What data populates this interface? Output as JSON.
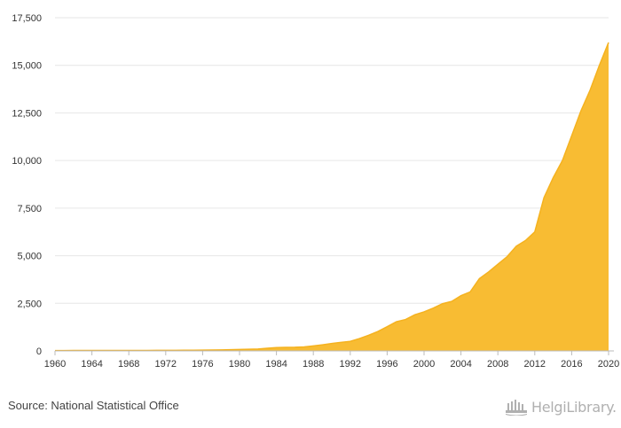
{
  "chart_data": {
    "type": "area",
    "title": "",
    "xlabel": "",
    "ylabel": "",
    "x": [
      1960,
      1961,
      1962,
      1963,
      1964,
      1965,
      1966,
      1967,
      1968,
      1969,
      1970,
      1971,
      1972,
      1973,
      1974,
      1975,
      1976,
      1977,
      1978,
      1979,
      1980,
      1981,
      1982,
      1983,
      1984,
      1985,
      1986,
      1987,
      1988,
      1989,
      1990,
      1991,
      1992,
      1993,
      1994,
      1995,
      1996,
      1997,
      1998,
      1999,
      2000,
      2001,
      2002,
      2003,
      2004,
      2005,
      2006,
      2007,
      2008,
      2009,
      2010,
      2011,
      2012,
      2013,
      2014,
      2015,
      2016,
      2017,
      2018,
      2019,
      2020
    ],
    "series": [
      {
        "values": [
          20,
          20,
          21,
          21,
          22,
          22,
          23,
          23,
          24,
          25,
          26,
          27,
          28,
          30,
          32,
          35,
          40,
          45,
          55,
          65,
          75,
          85,
          100,
          140,
          175,
          185,
          190,
          210,
          260,
          320,
          390,
          450,
          500,
          650,
          820,
          1020,
          1270,
          1530,
          1650,
          1900,
          2050,
          2250,
          2480,
          2600,
          2900,
          3100,
          3800,
          4150,
          4550,
          4950,
          5500,
          5800,
          6250,
          8050,
          9100,
          10000,
          11300,
          12600,
          13700,
          15000,
          16200
        ]
      }
    ],
    "x_ticks": [
      "1960",
      "1964",
      "1968",
      "1972",
      "1976",
      "1980",
      "1984",
      "1988",
      "1992",
      "1996",
      "2000",
      "2004",
      "2008",
      "2012",
      "2016",
      "2020"
    ],
    "y_ticks": [
      "0",
      "2,500",
      "5,000",
      "7,500",
      "10,000",
      "12,500",
      "15,000",
      "17,500"
    ],
    "ylim": [
      0,
      17500
    ],
    "xlim": [
      1960,
      2020
    ],
    "grid": true,
    "colors": {
      "fill": "#f8bc33",
      "line": "#f5b21f"
    }
  },
  "footer": {
    "source": "Source: National Statistical Office",
    "logo_text": "HelgiLibrary."
  }
}
